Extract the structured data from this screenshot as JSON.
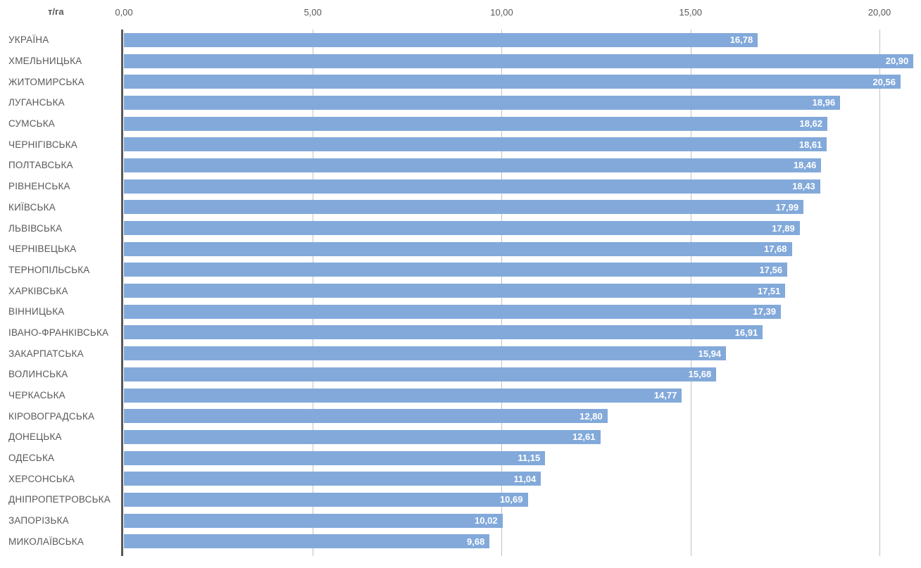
{
  "chart_data": {
    "type": "bar",
    "orientation": "horizontal",
    "title": "",
    "unit_label": "т/га",
    "xlabel": "т/га",
    "ylabel": "",
    "xlim": [
      0,
      21.1
    ],
    "grid": "vertical",
    "legend": "none",
    "x_ticks": [
      "0,00",
      "5,00",
      "10,00",
      "15,00",
      "20,00"
    ],
    "x_tick_values": [
      0,
      5,
      10,
      15,
      20
    ],
    "categories": [
      "УКРАЇНА",
      "ХМЕЛЬНИЦЬКА",
      "ЖИТОМИРСЬКА",
      "ЛУГАНСЬКА",
      "СУМСЬКА",
      "ЧЕРНІГІВСЬКА",
      "ПОЛТАВСЬКА",
      "РІВНЕНСЬКА",
      "КИЇВСЬКА",
      "ЛЬВІВСЬКА",
      "ЧЕРНІВЕЦЬКА",
      "ТЕРНОПІЛЬСЬКА",
      "ХАРКІВСЬКА",
      "ВІННИЦЬКА",
      "ІВАНО-ФРАНКІВСЬКА",
      "ЗАКАРПАТСЬКА",
      "ВОЛИНСЬКА",
      "ЧЕРКАСЬКА",
      "КІРОВОГРАДСЬКА",
      "ДОНЕЦЬКА",
      "ОДЕСЬКА",
      "ХЕРСОНСЬКА",
      "ДНІПРОПЕТРОВСЬКА",
      "ЗАПОРІЗЬКА",
      "МИКОЛАЇВСЬКА"
    ],
    "values": [
      16.78,
      20.9,
      20.56,
      18.96,
      18.62,
      18.61,
      18.46,
      18.43,
      17.99,
      17.89,
      17.68,
      17.56,
      17.51,
      17.39,
      16.91,
      15.94,
      15.68,
      14.77,
      12.8,
      12.61,
      11.15,
      11.04,
      10.69,
      10.02,
      9.68
    ],
    "value_labels": [
      "16,78",
      "20,90",
      "20,56",
      "18,96",
      "18,62",
      "18,61",
      "18,46",
      "18,43",
      "17,99",
      "17,89",
      "17,68",
      "17,56",
      "17,51",
      "17,39",
      "16,91",
      "15,94",
      "15,68",
      "14,77",
      "12,80",
      "12,61",
      "11,15",
      "11,04",
      "10,69",
      "10,02",
      "9,68"
    ],
    "colors": {
      "bar": "#82a9da",
      "gridline": "#c2c2c2",
      "axis_line": "#595959",
      "category_label": "#595959",
      "tick_label": "#595959",
      "value_label": "#ffffff",
      "background": "#ffffff"
    }
  }
}
